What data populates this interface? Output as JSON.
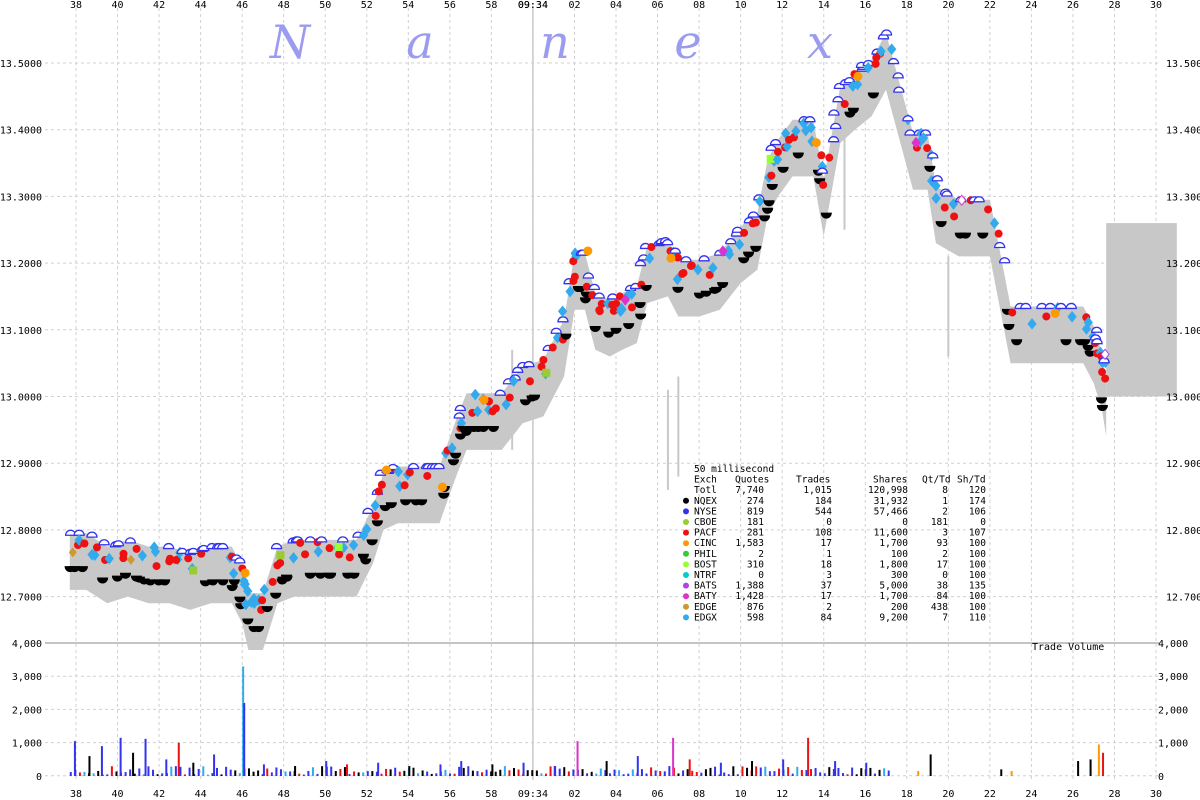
{
  "watermark": [
    "N",
    "a",
    "n",
    "e",
    "x"
  ],
  "time_label": "09:34",
  "volume_label": "Trade Volume",
  "chart_data": {
    "type": "scatter",
    "x_axis": {
      "ticks": [
        "38",
        "40",
        "42",
        "44",
        "46",
        "48",
        "50",
        "52",
        "54",
        "56",
        "58",
        "09:34",
        "02",
        "04",
        "06",
        "08",
        "10",
        "12",
        "14",
        "16",
        "18",
        "20",
        "22",
        "24",
        "26",
        "28",
        "30"
      ],
      "unit": "seconds"
    },
    "price_axis": {
      "ticks": [
        "13.5000",
        "13.4000",
        "13.3000",
        "13.2000",
        "13.1000",
        "13.0000",
        "12.9000",
        "12.8000",
        "12.7000"
      ],
      "ylim": [
        12.65,
        13.55
      ]
    },
    "volume_axis": {
      "ticks": [
        "4,000",
        "3,000",
        "2,000",
        "1,000",
        "0"
      ],
      "ylim": [
        0,
        4000
      ]
    },
    "grid": true,
    "colors": {
      "nbbo_band": "#c8c8c8",
      "NQEX": "#000000",
      "NYSE": "#3333ee",
      "CBOE": "#99cc33",
      "PACF": "#ee1111",
      "CINC": "#ff9900",
      "PHIL": "#33cc33",
      "BOST": "#99ff33",
      "NTRF": "#00cccc",
      "BATS": "#aa44ee",
      "BATY": "#dd33cc",
      "EDGE": "#cc9933",
      "EDGX": "#33aaee"
    },
    "price_path": [
      [
        37.7,
        12.78
      ],
      [
        38.5,
        12.78
      ],
      [
        39.5,
        12.76
      ],
      [
        40.5,
        12.77
      ],
      [
        41.5,
        12.76
      ],
      [
        42.5,
        12.76
      ],
      [
        43.5,
        12.75
      ],
      [
        44.5,
        12.76
      ],
      [
        45.5,
        12.76
      ],
      [
        46.0,
        12.73
      ],
      [
        46.3,
        12.69
      ],
      [
        47.0,
        12.69
      ],
      [
        47.7,
        12.76
      ],
      [
        48.5,
        12.77
      ],
      [
        49.5,
        12.77
      ],
      [
        50.5,
        12.77
      ],
      [
        51.5,
        12.77
      ],
      [
        52.3,
        12.82
      ],
      [
        52.8,
        12.87
      ],
      [
        53.5,
        12.88
      ],
      [
        54.5,
        12.88
      ],
      [
        55.5,
        12.88
      ],
      [
        56.3,
        12.95
      ],
      [
        56.8,
        12.99
      ],
      [
        57.5,
        12.99
      ],
      [
        58.5,
        12.99
      ],
      [
        59.5,
        13.03
      ],
      [
        60.5,
        13.04
      ],
      [
        61.5,
        13.1
      ],
      [
        62.0,
        13.2
      ],
      [
        62.5,
        13.2
      ],
      [
        63.0,
        13.14
      ],
      [
        63.7,
        13.13
      ],
      [
        64.3,
        13.14
      ],
      [
        65.0,
        13.15
      ],
      [
        65.5,
        13.21
      ],
      [
        66.5,
        13.22
      ],
      [
        67.0,
        13.19
      ],
      [
        68.0,
        13.19
      ],
      [
        69.0,
        13.2
      ],
      [
        70.0,
        13.24
      ],
      [
        70.8,
        13.26
      ],
      [
        71.3,
        13.34
      ],
      [
        71.8,
        13.37
      ],
      [
        72.5,
        13.4
      ],
      [
        73.5,
        13.4
      ],
      [
        74.0,
        13.31
      ],
      [
        74.8,
        13.45
      ],
      [
        75.5,
        13.47
      ],
      [
        76.3,
        13.49
      ],
      [
        77.0,
        13.53
      ],
      [
        78.3,
        13.38
      ],
      [
        79.0,
        13.38
      ],
      [
        79.4,
        13.3
      ],
      [
        80.5,
        13.28
      ],
      [
        82.0,
        13.28
      ],
      [
        83.0,
        13.12
      ],
      [
        85.0,
        13.12
      ],
      [
        86.5,
        13.12
      ],
      [
        87.0,
        13.09
      ],
      [
        87.4,
        13.05
      ],
      [
        87.6,
        13.01
      ]
    ],
    "exchanges": [
      {
        "code": "Totl",
        "quotes": "7,740",
        "trades": "1,015",
        "shares": "120,998",
        "qt_td": "8",
        "sh_td": "120"
      },
      {
        "code": "NQEX",
        "quotes": "274",
        "trades": "184",
        "shares": "31,932",
        "qt_td": "1",
        "sh_td": "174"
      },
      {
        "code": "NYSE",
        "quotes": "819",
        "trades": "544",
        "shares": "57,466",
        "qt_td": "2",
        "sh_td": "106"
      },
      {
        "code": "CBOE",
        "quotes": "181",
        "trades": "0",
        "shares": "0",
        "qt_td": "181",
        "sh_td": "0"
      },
      {
        "code": "PACF",
        "quotes": "281",
        "trades": "108",
        "shares": "11,600",
        "qt_td": "3",
        "sh_td": "107"
      },
      {
        "code": "CINC",
        "quotes": "1,583",
        "trades": "17",
        "shares": "1,700",
        "qt_td": "93",
        "sh_td": "100"
      },
      {
        "code": "PHIL",
        "quotes": "2",
        "trades": "1",
        "shares": "100",
        "qt_td": "2",
        "sh_td": "100"
      },
      {
        "code": "BOST",
        "quotes": "310",
        "trades": "18",
        "shares": "1,800",
        "qt_td": "17",
        "sh_td": "100"
      },
      {
        "code": "NTRF",
        "quotes": "0",
        "trades": "3",
        "shares": "300",
        "qt_td": "0",
        "sh_td": "100"
      },
      {
        "code": "BATS",
        "quotes": "1,388",
        "trades": "37",
        "shares": "5,000",
        "qt_td": "38",
        "sh_td": "135"
      },
      {
        "code": "BATY",
        "quotes": "1,428",
        "trades": "17",
        "shares": "1,700",
        "qt_td": "84",
        "sh_td": "100"
      },
      {
        "code": "EDGE",
        "quotes": "876",
        "trades": "2",
        "shares": "200",
        "qt_td": "438",
        "sh_td": "100"
      },
      {
        "code": "EDGX",
        "quotes": "598",
        "trades": "84",
        "shares": "9,200",
        "qt_td": "7",
        "sh_td": "110"
      }
    ],
    "stats_table": {
      "title": "50 millisecond",
      "headers": [
        "Exch",
        "Quotes",
        "Trades",
        "Shares",
        "Qt/Td",
        "Sh/Td"
      ]
    },
    "volume_bars": [
      {
        "x": 37.9,
        "v": 1050,
        "ex": "NYSE"
      },
      {
        "x": 38.6,
        "v": 600,
        "ex": "NQEX"
      },
      {
        "x": 39.2,
        "v": 900,
        "ex": "NYSE"
      },
      {
        "x": 40.1,
        "v": 1150,
        "ex": "NYSE"
      },
      {
        "x": 40.7,
        "v": 700,
        "ex": "NQEX"
      },
      {
        "x": 41.3,
        "v": 1120,
        "ex": "NYSE"
      },
      {
        "x": 42.3,
        "v": 500,
        "ex": "NYSE"
      },
      {
        "x": 42.9,
        "v": 1000,
        "ex": "PACF"
      },
      {
        "x": 43.6,
        "v": 400,
        "ex": "NQEX"
      },
      {
        "x": 44.6,
        "v": 650,
        "ex": "NYSE"
      },
      {
        "x": 46.0,
        "v": 3300,
        "ex": "EDGX"
      },
      {
        "x": 46.05,
        "v": 2200,
        "ex": "NYSE"
      },
      {
        "x": 47.0,
        "v": 350,
        "ex": "NYSE"
      },
      {
        "x": 48.5,
        "v": 300,
        "ex": "NQEX"
      },
      {
        "x": 50.0,
        "v": 450,
        "ex": "NYSE"
      },
      {
        "x": 51.0,
        "v": 350,
        "ex": "PACF"
      },
      {
        "x": 52.5,
        "v": 400,
        "ex": "NYSE"
      },
      {
        "x": 54.0,
        "v": 300,
        "ex": "NQEX"
      },
      {
        "x": 55.5,
        "v": 350,
        "ex": "NYSE"
      },
      {
        "x": 56.5,
        "v": 450,
        "ex": "NYSE"
      },
      {
        "x": 58.0,
        "v": 350,
        "ex": "NQEX"
      },
      {
        "x": 59.5,
        "v": 400,
        "ex": "NYSE"
      },
      {
        "x": 61.0,
        "v": 300,
        "ex": "NYSE"
      },
      {
        "x": 62.1,
        "v": 1050,
        "ex": "BATY"
      },
      {
        "x": 63.5,
        "v": 450,
        "ex": "NQEX"
      },
      {
        "x": 65.0,
        "v": 600,
        "ex": "NYSE"
      },
      {
        "x": 66.7,
        "v": 1150,
        "ex": "BATY"
      },
      {
        "x": 67.5,
        "v": 500,
        "ex": "PACF"
      },
      {
        "x": 69.0,
        "v": 400,
        "ex": "NYSE"
      },
      {
        "x": 70.5,
        "v": 450,
        "ex": "NQEX"
      },
      {
        "x": 72.0,
        "v": 500,
        "ex": "NYSE"
      },
      {
        "x": 73.2,
        "v": 1150,
        "ex": "PACF"
      },
      {
        "x": 74.5,
        "v": 450,
        "ex": "NYSE"
      },
      {
        "x": 76.0,
        "v": 400,
        "ex": "NYSE"
      },
      {
        "x": 78.5,
        "v": 150,
        "ex": "CINC"
      },
      {
        "x": 79.1,
        "v": 650,
        "ex": "NQEX"
      },
      {
        "x": 82.5,
        "v": 200,
        "ex": "NQEX"
      },
      {
        "x": 83.0,
        "v": 150,
        "ex": "CINC"
      },
      {
        "x": 86.2,
        "v": 450,
        "ex": "NQEX"
      },
      {
        "x": 86.8,
        "v": 500,
        "ex": "NQEX"
      },
      {
        "x": 87.2,
        "v": 950,
        "ex": "CINC"
      },
      {
        "x": 87.4,
        "v": 700,
        "ex": "PACF"
      }
    ]
  }
}
